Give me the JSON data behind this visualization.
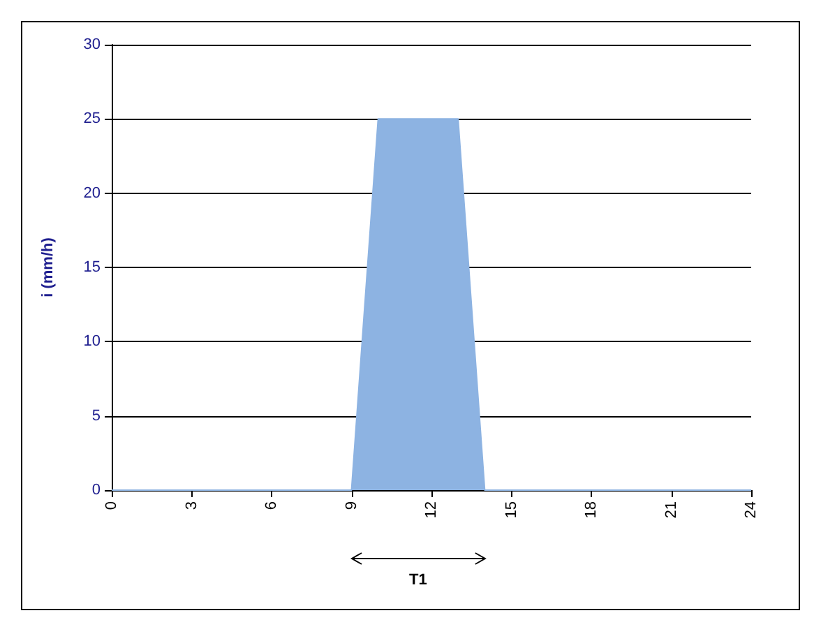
{
  "chart_data": {
    "type": "area",
    "ylabel": "i (mm/h)",
    "annotations": [
      "T1"
    ],
    "x": [
      0,
      9,
      10,
      13,
      14,
      24
    ],
    "series": [
      {
        "color": "#8db3e2",
        "values": [
          0,
          0,
          25,
          25,
          0,
          0
        ]
      }
    ],
    "xlim": [
      0,
      24
    ],
    "xticks": [
      0,
      3,
      6,
      9,
      12,
      15,
      18,
      21,
      24
    ],
    "ylim": [
      0,
      30
    ],
    "yticks": [
      0,
      5,
      10,
      15,
      20,
      25,
      30
    ],
    "grid": "y",
    "marker": "none"
  }
}
